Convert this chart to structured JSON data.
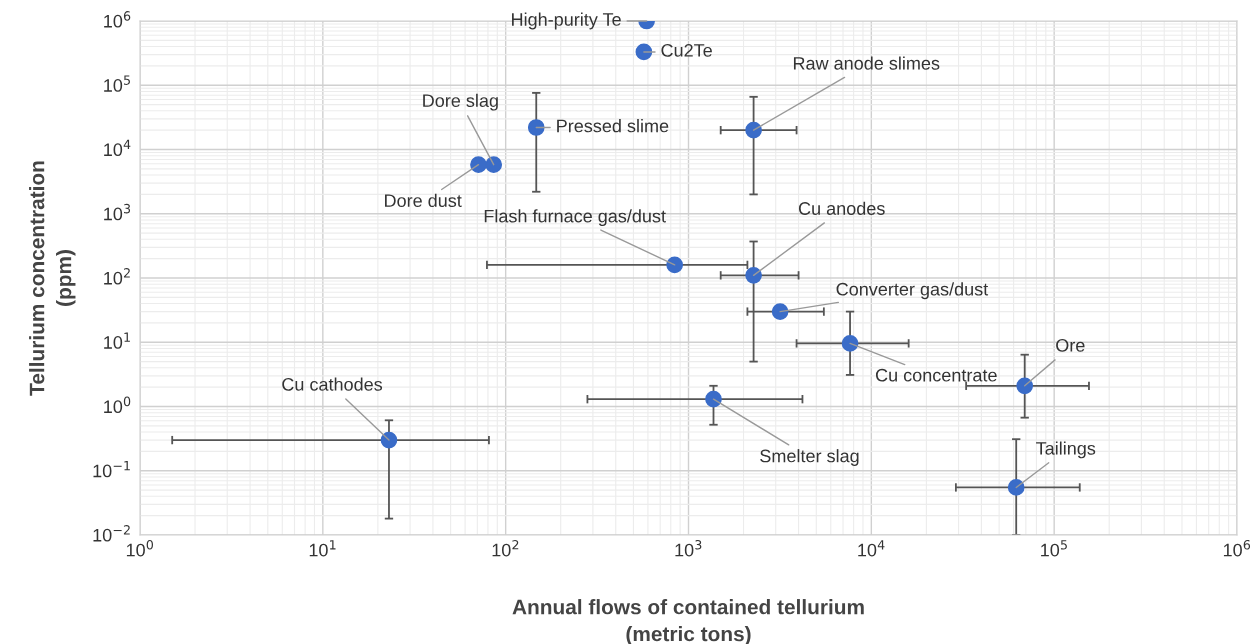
{
  "chart_data": {
    "type": "scatter",
    "xlabel": "Annual flows of contained tellurium\n(metric tons)",
    "ylabel": "Tellurium concentration\n(ppm)",
    "log": "xy",
    "grid": true,
    "marker": "circle",
    "xlim": [
      1,
      1000000
    ],
    "ylim": [
      0.01,
      1000000
    ],
    "xticks": [
      {
        "value": 1,
        "label": "10$^{0}$"
      },
      {
        "value": 10,
        "label": "10$^{1}$"
      },
      {
        "value": 100,
        "label": "10$^{2}$"
      },
      {
        "value": 1000,
        "label": "10$^{3}$"
      },
      {
        "value": 10000,
        "label": "10$^{4}$"
      },
      {
        "value": 100000,
        "label": "10$^{5}$"
      },
      {
        "value": 1000000,
        "label": "10$^{6}$"
      }
    ],
    "yticks": [
      {
        "value": 0.01,
        "label": "10$^{−2}$"
      },
      {
        "value": 0.1,
        "label": "10$^{−1}$"
      },
      {
        "value": 1,
        "label": "10$^{0}$"
      },
      {
        "value": 10,
        "label": "10$^{1}$"
      },
      {
        "value": 100,
        "label": "10$^{2}$"
      },
      {
        "value": 1000,
        "label": "10$^{3}$"
      },
      {
        "value": 10000,
        "label": "10$^{4}$"
      },
      {
        "value": 100000,
        "label": "10$^{5}$"
      },
      {
        "value": 1000000,
        "label": "10$^{6}$"
      }
    ],
    "series": [
      {
        "color": "#3a6cc8",
        "x": [
          590,
          570,
          147,
          86,
          71,
          2270,
          840,
          2270,
          3170,
          7650,
          69000,
          1370,
          62000,
          23
        ],
        "values": [
          1000000,
          330000,
          22000,
          5800,
          5800,
          20000,
          160,
          110,
          30,
          9.6,
          2.1,
          1.3,
          0.055,
          0.3
        ],
        "errors": [
          null,
          null,
          [
            2200,
            76000
          ],
          null,
          null,
          [
            2000,
            66000
          ],
          null,
          [
            5,
            370
          ],
          null,
          [
            3.1,
            30
          ],
          [
            0.67,
            6.4
          ],
          [
            0.52,
            2.1
          ],
          [
            0.01,
            0.31
          ],
          [
            0.018,
            0.61
          ]
        ],
        "xerrors": [
          null,
          null,
          null,
          null,
          null,
          [
            1500,
            3900
          ],
          [
            79,
            2100
          ],
          [
            1500,
            4000
          ],
          [
            2100,
            5500
          ],
          [
            3900,
            16000
          ],
          [
            33000,
            155000
          ],
          [
            280,
            4200
          ],
          [
            29000,
            138000
          ],
          [
            1.5,
            81
          ]
        ]
      }
    ],
    "annotations": [
      {
        "text": "High-purity Te",
        "x": 590,
        "y": 1000000
      },
      {
        "text": "Cu2Te",
        "x": 570,
        "y": 330000
      },
      {
        "text": "Pressed slime",
        "x": 147,
        "y": 22000
      },
      {
        "text": "Dore slag",
        "x": 86,
        "y": 5800
      },
      {
        "text": "Dore dust",
        "x": 71,
        "y": 5800
      },
      {
        "text": "Raw anode slimes",
        "x": 2270,
        "y": 20000
      },
      {
        "text": "Flash furnace gas/dust",
        "x": 840,
        "y": 160
      },
      {
        "text": "Cu anodes",
        "x": 2270,
        "y": 110
      },
      {
        "text": "Converter gas/dust",
        "x": 3170,
        "y": 30
      },
      {
        "text": "Cu concentrate",
        "x": 7650,
        "y": 9.6
      },
      {
        "text": "Ore",
        "x": 69000,
        "y": 2.1
      },
      {
        "text": "Smelter slag",
        "x": 1370,
        "y": 1.3
      },
      {
        "text": "Tailings",
        "x": 62000,
        "y": 0.055
      },
      {
        "text": "Cu cathodes",
        "x": 23,
        "y": 0.3
      }
    ]
  }
}
